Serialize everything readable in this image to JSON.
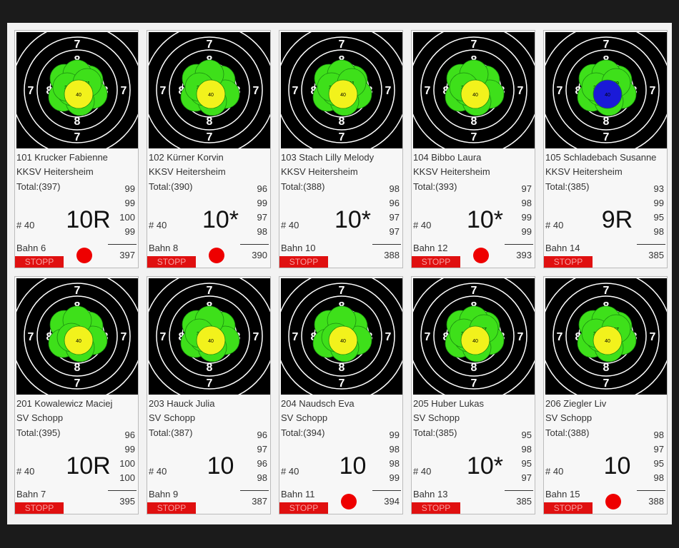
{
  "ring_labels": [
    "7",
    "8"
  ],
  "cards": [
    {
      "name": "101 Krucker Fabienne",
      "club": "KKSV Heitersheim",
      "total": "Total:(397)",
      "series": [
        99,
        99,
        100,
        99
      ],
      "shots_label": "# 40",
      "score": "10R",
      "lane": "Bahn 6",
      "sum": 397,
      "button": "STOPP",
      "indicator": true,
      "shots": [
        "39",
        "31",
        "40"
      ],
      "last_shot_color": "#f2f21c"
    },
    {
      "name": "102 Kürner Korvin",
      "club": "KKSV Heitersheim",
      "total": "Total:(390)",
      "series": [
        96,
        99,
        97,
        98
      ],
      "shots_label": "# 40",
      "score": "10*",
      "lane": "Bahn 8",
      "sum": 390,
      "button": "STOPP",
      "indicator": true,
      "shots": [
        "39",
        "40"
      ],
      "last_shot_color": "#f2f21c"
    },
    {
      "name": "103 Stach Lilly Melody",
      "club": "KKSV Heitersheim",
      "total": "Total:(388)",
      "series": [
        98,
        96,
        97,
        97
      ],
      "shots_label": "# 40",
      "score": "10*",
      "lane": "Bahn 10",
      "sum": 388,
      "button": "STOPP",
      "indicator": false,
      "shots": [
        "38",
        "31",
        "40"
      ],
      "last_shot_color": "#f2f21c"
    },
    {
      "name": "104 Bibbo Laura",
      "club": "KKSV Heitersheim",
      "total": "Total:(393)",
      "series": [
        97,
        98,
        99,
        99
      ],
      "shots_label": "# 40",
      "score": "10*",
      "lane": "Bahn 12",
      "sum": 393,
      "button": "STOPP",
      "indicator": true,
      "shots": [
        "39",
        "40"
      ],
      "last_shot_color": "#f2f21c"
    },
    {
      "name": "105 Schladebach Susanne",
      "club": "KKSV Heitersheim",
      "total": "Total:(385)",
      "series": [
        93,
        99,
        95,
        98
      ],
      "shots_label": "# 40",
      "score": "9R",
      "lane": "Bahn 14",
      "sum": 385,
      "button": "STOPP",
      "indicator": false,
      "shots": [
        "33",
        "39",
        "40"
      ],
      "last_shot_color": "#1a1ad8"
    },
    {
      "name": "201 Kowalewicz Maciej",
      "club": "SV Schopp",
      "total": "Total:(395)",
      "series": [
        96,
        99,
        100,
        100
      ],
      "shots_label": "# 40",
      "score": "10R",
      "lane": "Bahn 7",
      "sum": 395,
      "button": "STOPP",
      "indicator": false,
      "shots": [
        "40"
      ],
      "last_shot_color": "#f2f21c"
    },
    {
      "name": "203 Hauck Julia",
      "club": "SV Schopp",
      "total": "Total:(387)",
      "series": [
        96,
        97,
        96,
        98
      ],
      "shots_label": "# 40",
      "score": "10",
      "lane": "Bahn 9",
      "sum": 387,
      "button": "STOPP",
      "indicator": false,
      "shots": [
        "38",
        "40"
      ],
      "last_shot_color": "#f2f21c"
    },
    {
      "name": "204 Naudsch Eva",
      "club": "SV Schopp",
      "total": "Total:(394)",
      "series": [
        99,
        98,
        98,
        99
      ],
      "shots_label": "# 40",
      "score": "10",
      "lane": "Bahn 11",
      "sum": 394,
      "button": "STOPP",
      "indicator": true,
      "shots": [
        "40"
      ],
      "last_shot_color": "#f2f21c"
    },
    {
      "name": "205 Huber Lukas",
      "club": "SV Schopp",
      "total": "Total:(385)",
      "series": [
        95,
        98,
        95,
        97
      ],
      "shots_label": "# 40",
      "score": "10*",
      "lane": "Bahn 13",
      "sum": 385,
      "button": "STOPP",
      "indicator": false,
      "shots": [
        "38",
        "37",
        "40"
      ],
      "last_shot_color": "#f2f21c"
    },
    {
      "name": "206 Ziegler Liv",
      "club": "SV Schopp",
      "total": "Total:(388)",
      "series": [
        98,
        97,
        95,
        98
      ],
      "shots_label": "# 40",
      "score": "10",
      "lane": "Bahn 15",
      "sum": 388,
      "button": "STOPP",
      "indicator": true,
      "shots": [
        "39",
        "37",
        "40"
      ],
      "last_shot_color": "#f2f21c"
    }
  ]
}
